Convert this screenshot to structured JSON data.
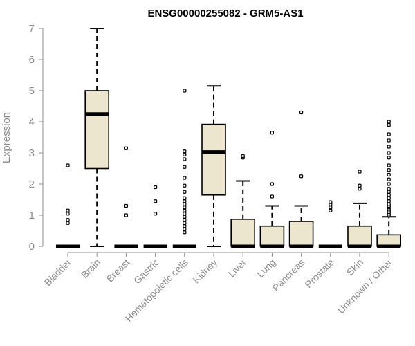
{
  "chart_data": {
    "type": "box",
    "title": "ENSG00000255082 - GRM5-AS1",
    "xlabel": "",
    "ylabel": "Expression",
    "ylim": [
      0,
      7
    ],
    "yticks": [
      0,
      1,
      2,
      3,
      4,
      5,
      6,
      7
    ],
    "grid": false,
    "box_fill": "#ede6cf",
    "box_stroke": "#000000",
    "axis_color": "#8c8c8c",
    "categories": [
      "Bladder",
      "Brain",
      "Breast",
      "Gastric",
      "Hematopoietic cells",
      "Kidney",
      "Liver",
      "Lung",
      "Pancreas",
      "Prostate",
      "Skin",
      "Unknown / Other"
    ],
    "boxes": [
      {
        "category": "Bladder",
        "q1": 0,
        "median": 0,
        "q3": 0,
        "whisker_low": 0,
        "whisker_high": 0,
        "outliers": [
          0.75,
          0.85,
          1.05,
          1.15,
          2.6
        ]
      },
      {
        "category": "Brain",
        "q1": 2.5,
        "median": 4.25,
        "q3": 5.0,
        "whisker_low": 0,
        "whisker_high": 7.0,
        "outliers": []
      },
      {
        "category": "Breast",
        "q1": 0,
        "median": 0,
        "q3": 0,
        "whisker_low": 0,
        "whisker_high": 0,
        "outliers": [
          1.0,
          1.3,
          3.15
        ]
      },
      {
        "category": "Gastric",
        "q1": 0,
        "median": 0,
        "q3": 0,
        "whisker_low": 0,
        "whisker_high": 0,
        "outliers": [
          1.05,
          1.45,
          1.9
        ]
      },
      {
        "category": "Hematopoietic cells",
        "q1": 0,
        "median": 0,
        "q3": 0,
        "whisker_low": 0,
        "whisker_high": 0,
        "outliers": [
          0.45,
          0.55,
          0.65,
          0.75,
          0.85,
          0.95,
          1.05,
          1.15,
          1.25,
          1.35,
          1.45,
          1.55,
          1.75,
          1.95,
          2.2,
          2.55,
          2.8,
          2.95,
          3.05,
          5.0
        ]
      },
      {
        "category": "Kidney",
        "q1": 1.65,
        "median": 3.03,
        "q3": 3.92,
        "whisker_low": 0,
        "whisker_high": 5.15,
        "outliers": []
      },
      {
        "category": "Liver",
        "q1": 0,
        "median": 0,
        "q3": 0.87,
        "whisker_low": 0,
        "whisker_high": 2.1,
        "outliers": [
          2.85,
          2.9
        ]
      },
      {
        "category": "Lung",
        "q1": 0,
        "median": 0,
        "q3": 0.65,
        "whisker_low": 0,
        "whisker_high": 1.3,
        "outliers": [
          1.6,
          2.0,
          3.65
        ]
      },
      {
        "category": "Pancreas",
        "q1": 0,
        "median": 0,
        "q3": 0.8,
        "whisker_low": 0,
        "whisker_high": 1.3,
        "outliers": [
          2.25,
          4.3
        ]
      },
      {
        "category": "Prostate",
        "q1": 0,
        "median": 0,
        "q3": 0,
        "whisker_low": 0,
        "whisker_high": 0,
        "outliers": [
          1.15,
          1.25,
          1.35,
          1.42
        ]
      },
      {
        "category": "Skin",
        "q1": 0,
        "median": 0,
        "q3": 0.65,
        "whisker_low": 0,
        "whisker_high": 1.38,
        "outliers": [
          1.85,
          1.95,
          2.4
        ]
      },
      {
        "category": "Unknown / Other",
        "q1": 0,
        "median": 0,
        "q3": 0.37,
        "whisker_low": 0,
        "whisker_high": 0.95,
        "outliers": [
          1.0,
          1.05,
          1.1,
          1.15,
          1.2,
          1.25,
          1.3,
          1.35,
          1.45,
          1.55,
          1.65,
          1.75,
          1.85,
          2.0,
          2.15,
          2.3,
          2.45,
          2.6,
          2.85,
          3.0,
          3.2,
          3.4,
          3.6,
          3.9,
          4.0
        ]
      }
    ]
  }
}
